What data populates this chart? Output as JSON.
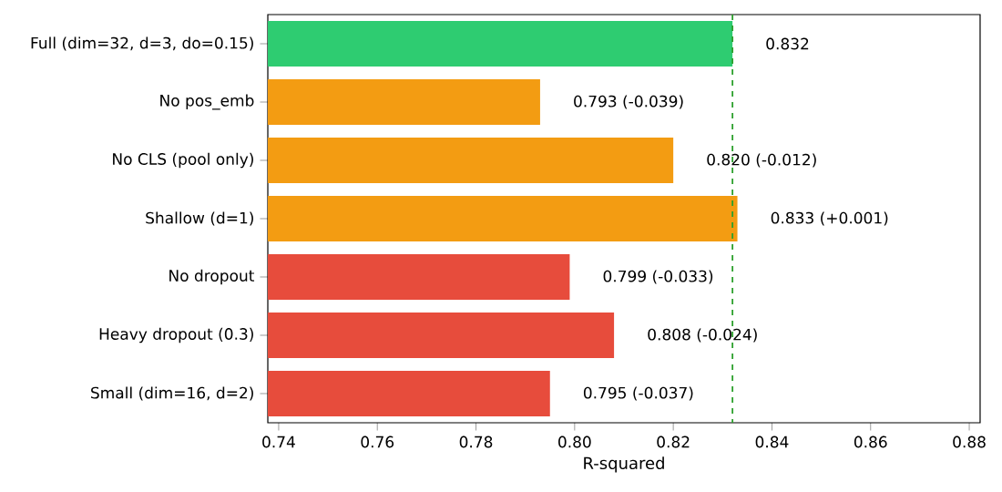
{
  "chart_data": {
    "type": "bar",
    "orientation": "horizontal",
    "xlabel": "R-squared",
    "categories": [
      "Full (dim=32, d=3, do=0.15)",
      "No pos_emb",
      "No CLS (pool only)",
      "Shallow (d=1)",
      "No dropout",
      "Heavy dropout (0.3)",
      "Small (dim=16, d=2)"
    ],
    "values": [
      0.832,
      0.793,
      0.82,
      0.833,
      0.799,
      0.808,
      0.795
    ],
    "colors": [
      "#2ecc71",
      "#f39c12",
      "#f39c12",
      "#f39c12",
      "#e74c3c",
      "#e74c3c",
      "#e74c3c"
    ],
    "value_labels": [
      "0.832",
      "0.793 (-0.039)",
      "0.820 (-0.012)",
      "0.833 (+0.001)",
      "0.799 (-0.033)",
      "0.808 (-0.024)",
      "0.795 (-0.037)"
    ],
    "xlim": [
      0.7378,
      0.8822
    ],
    "xticks": [
      {
        "value": 0.74,
        "label": "0.74"
      },
      {
        "value": 0.76,
        "label": "0.76"
      },
      {
        "value": 0.78,
        "label": "0.78"
      },
      {
        "value": 0.8,
        "label": "0.80"
      },
      {
        "value": 0.82,
        "label": "0.82"
      },
      {
        "value": 0.84,
        "label": "0.84"
      },
      {
        "value": 0.86,
        "label": "0.86"
      },
      {
        "value": 0.88,
        "label": "0.88"
      }
    ],
    "ref_lines": [
      {
        "axis": "x",
        "value": 0.832,
        "color": "#2ca02c",
        "line_style": "dashed"
      }
    ]
  }
}
